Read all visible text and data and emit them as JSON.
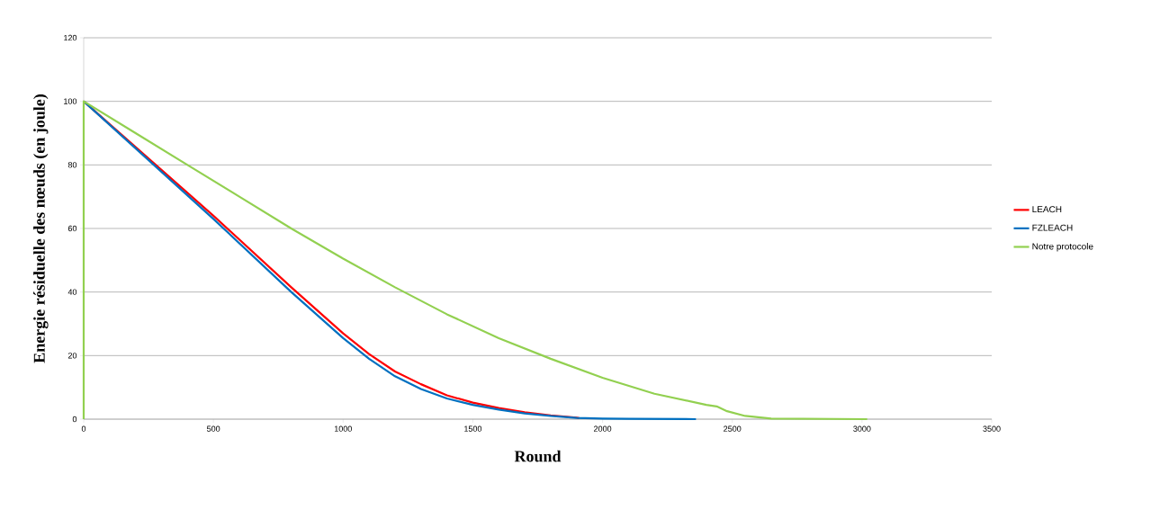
{
  "chart_data": {
    "type": "line",
    "xlabel": "Round",
    "ylabel": "Energie résiduelle des nœuds (en joule)",
    "xlim": [
      0,
      3500
    ],
    "xticks": [
      0,
      500,
      1000,
      1500,
      2000,
      2500,
      3000,
      3500
    ],
    "ylim": [
      0,
      120
    ],
    "yticks": [
      0,
      20,
      40,
      60,
      80,
      100,
      120
    ],
    "grid": "y",
    "legend": "right",
    "marker": "none",
    "line_style": "solid",
    "series": [
      {
        "name": "LEACH",
        "color": "#ff0000",
        "x": [
          0,
          500,
          800,
          1000,
          1100,
          1200,
          1300,
          1400,
          1500,
          1600,
          1700,
          1800,
          1900,
          1910
        ],
        "values": [
          100,
          64,
          41.5,
          27,
          20.5,
          15,
          11,
          7.5,
          5.2,
          3.5,
          2.2,
          1.2,
          0.5,
          0.3
        ]
      },
      {
        "name": "FZLEACH",
        "color": "#0070c0",
        "x": [
          0,
          500,
          800,
          1000,
          1100,
          1200,
          1300,
          1400,
          1500,
          1600,
          1700,
          1800,
          1900,
          2000,
          2100,
          2360
        ],
        "values": [
          100,
          63,
          40,
          25.5,
          19,
          13.5,
          9.5,
          6.5,
          4.5,
          3,
          1.8,
          1,
          0.4,
          0.2,
          0.1,
          0
        ]
      },
      {
        "name": "Notre protocole",
        "color": "#92d050",
        "x": [
          0,
          0,
          200,
          400,
          600,
          800,
          1000,
          1200,
          1400,
          1600,
          1800,
          2000,
          2200,
          2400,
          2440,
          2480,
          2550,
          2650,
          3020
        ],
        "values": [
          0,
          100,
          90,
          80,
          70,
          60,
          50.5,
          41.5,
          33,
          25.5,
          19,
          13,
          8,
          4.5,
          4,
          2.5,
          1,
          0.2,
          0
        ]
      }
    ]
  }
}
